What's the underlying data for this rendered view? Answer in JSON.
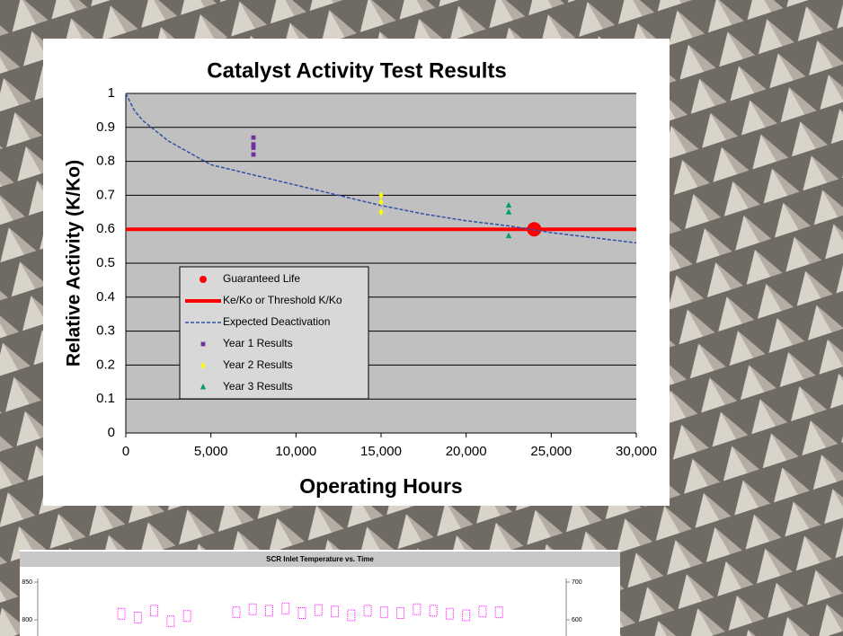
{
  "chart_data": [
    {
      "type": "scatter",
      "title": "Catalyst Activity Test Results",
      "x_label": "Operating Hours",
      "y_label": "Relative Activity (K/Ko)",
      "xlim": [
        0,
        30000
      ],
      "xticks": [
        0,
        {
          "value": 5000,
          "label": "5,000"
        },
        {
          "value": 10000,
          "label": "10,000"
        },
        {
          "value": 15000,
          "label": "15,000"
        },
        {
          "value": 20000,
          "label": "20,000"
        },
        {
          "value": 25000,
          "label": "25,000"
        },
        {
          "value": 30000,
          "label": "30,000"
        }
      ],
      "ylim": [
        0,
        1
      ],
      "yticks": [
        0,
        0.1,
        0.2,
        0.3,
        0.4,
        0.5,
        0.6,
        0.7,
        0.8,
        0.9,
        1
      ],
      "grid": true,
      "legend": "lower left",
      "series": [
        {
          "name": "Guaranteed Life",
          "color": "#ff0000",
          "style": "circle",
          "x": [
            24000
          ],
          "values": [
            0.6
          ]
        },
        {
          "name": "Ke/Ko or Threshold K/Ko",
          "color": "#ff0000",
          "style": "line",
          "x": [
            0,
            30000
          ],
          "values": [
            0.6,
            0.6
          ]
        },
        {
          "name": "Expected Deactivation",
          "color": "#3050a8",
          "style": "dashed",
          "x": [
            0,
            500,
            1000,
            2500,
            5000,
            7500,
            10000,
            12500,
            15000,
            17500,
            20000,
            22500,
            25000,
            27500,
            30000
          ],
          "values": [
            1.0,
            0.95,
            0.92,
            0.86,
            0.79,
            0.76,
            0.73,
            0.7,
            0.67,
            0.645,
            0.625,
            0.61,
            0.59,
            0.575,
            0.56
          ]
        },
        {
          "name": "Year 1 Results",
          "color": "#7030a0",
          "style": "square",
          "x": [
            7500,
            7500,
            7500,
            7500
          ],
          "values": [
            0.87,
            0.85,
            0.84,
            0.82
          ]
        },
        {
          "name": "Year 2 Results",
          "color": "#ffff00",
          "style": "diamond",
          "x": [
            15000,
            15000,
            15000
          ],
          "values": [
            0.7,
            0.68,
            0.65
          ]
        },
        {
          "name": "Year 3 Results",
          "color": "#00a060",
          "style": "triangle",
          "x": [
            22500,
            22500,
            22500
          ],
          "values": [
            0.67,
            0.65,
            0.58
          ]
        }
      ]
    },
    {
      "type": "line",
      "title": "SCR Inlet Temperature vs. Time",
      "xlim": [
        0,
        30
      ],
      "ylim": [
        650,
        850
      ],
      "yticks": [
        800,
        850
      ],
      "y2lim": [
        300,
        700
      ],
      "y2ticks": [
        600,
        700
      ],
      "series": [
        {
          "color": "#ff00ff",
          "x": [
            4,
            5,
            6,
            7,
            8,
            11,
            12,
            13,
            14,
            15,
            16,
            17,
            18,
            19,
            20,
            21,
            22,
            23,
            24,
            25,
            26,
            27
          ],
          "values": [
            808,
            803,
            812,
            798,
            805,
            810,
            814,
            812,
            815,
            809,
            813,
            811,
            806,
            812,
            810,
            809,
            814,
            812,
            808,
            806,
            811,
            810
          ]
        }
      ]
    }
  ]
}
